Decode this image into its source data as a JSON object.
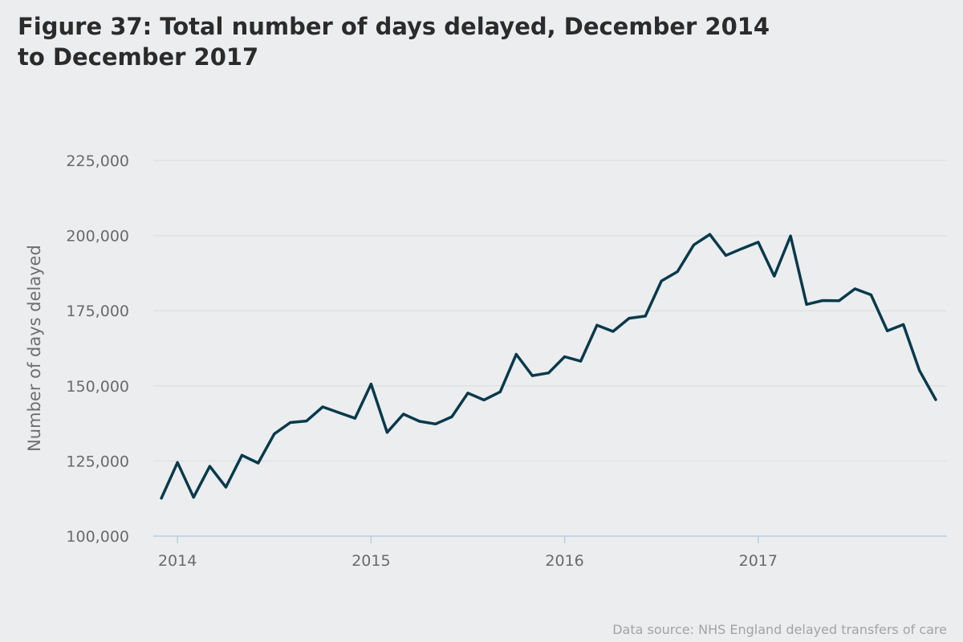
{
  "title": {
    "line1": "Figure 37: Total number of days delayed, December 2014",
    "line2": "to December 2017"
  },
  "source": "Data source: NHS England delayed transfers of care",
  "colors": {
    "line": "#073a4b",
    "grid": "#dfe1e4",
    "axis": "#b9cfe3",
    "background": "#ecedef"
  },
  "chart_data": {
    "type": "line",
    "title": "Figure 37: Total number of days delayed, December 2014 to December 2017",
    "xlabel": "",
    "ylabel": "Number of days delayed",
    "ylim": [
      100000,
      225000
    ],
    "yticks": [
      100000,
      125000,
      150000,
      175000,
      200000,
      225000
    ],
    "ytick_labels": [
      "100,000",
      "125,000",
      "150,000",
      "175,000",
      "200,000",
      "225,000"
    ],
    "xticks": [
      2014,
      2015,
      2016,
      2017
    ],
    "xtick_labels": [
      "2014",
      "2015",
      "2016",
      "2017"
    ],
    "xlim": [
      2013.875,
      2017.975
    ],
    "grid": true,
    "series": [
      {
        "name": "Total number of days delayed",
        "x": [
          2013.917,
          2014.0,
          2014.083,
          2014.167,
          2014.25,
          2014.333,
          2014.417,
          2014.5,
          2014.583,
          2014.667,
          2014.75,
          2014.833,
          2014.917,
          2015.0,
          2015.083,
          2015.167,
          2015.25,
          2015.333,
          2015.417,
          2015.5,
          2015.583,
          2015.667,
          2015.75,
          2015.833,
          2015.917,
          2016.0,
          2016.083,
          2016.167,
          2016.25,
          2016.333,
          2016.417,
          2016.5,
          2016.583,
          2016.667,
          2016.75,
          2016.833,
          2016.917,
          2017.0,
          2017.083,
          2017.167,
          2017.25,
          2017.333,
          2017.417,
          2017.5,
          2017.583,
          2017.667,
          2017.75,
          2017.833,
          2017.917
        ],
        "values": [
          112600,
          124500,
          112900,
          123200,
          116300,
          126900,
          124300,
          134000,
          137800,
          138300,
          143000,
          141100,
          139200,
          150600,
          134500,
          140600,
          138200,
          137300,
          139700,
          147600,
          145300,
          148000,
          160500,
          153400,
          154300,
          159700,
          158200,
          170200,
          168100,
          172500,
          173200,
          184900,
          188000,
          196900,
          200400,
          193400,
          195700,
          197800,
          186500,
          199900,
          177100,
          178400,
          178300,
          182300,
          180300,
          168300,
          170400,
          155100,
          145400
        ]
      }
    ]
  }
}
